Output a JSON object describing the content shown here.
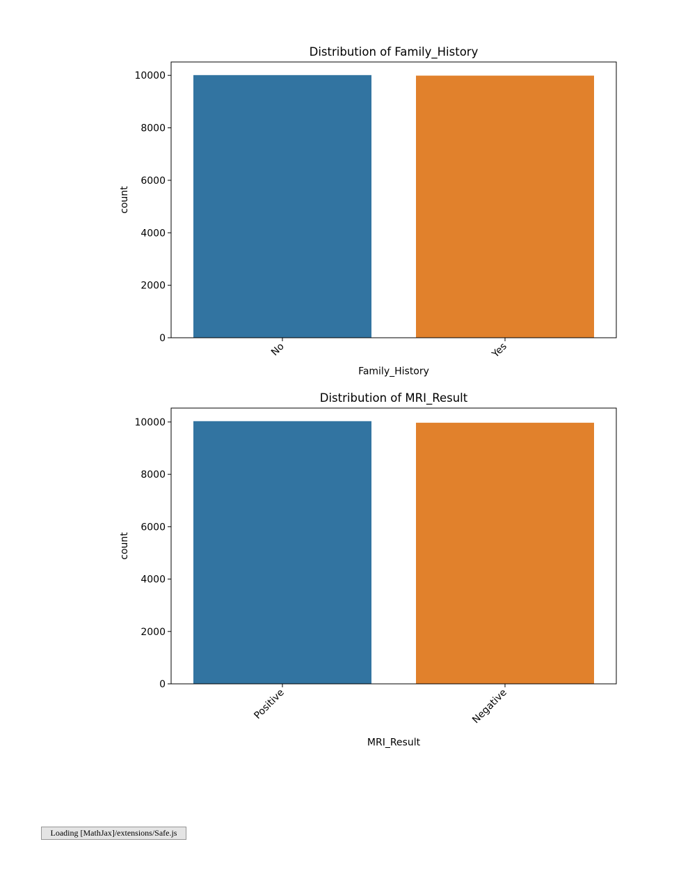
{
  "chart_data": [
    {
      "type": "bar",
      "title": "Distribution of Family_History",
      "xlabel": "Family_History",
      "ylabel": "count",
      "categories": [
        "No",
        "Yes"
      ],
      "values": [
        10010,
        9990
      ],
      "colors": [
        "#3274a1",
        "#e1812c"
      ],
      "ylim": [
        0,
        10510
      ],
      "yticks": [
        0,
        2000,
        4000,
        6000,
        8000,
        10000
      ],
      "grid": false,
      "legend": "none"
    },
    {
      "type": "bar",
      "title": "Distribution of MRI_Result",
      "xlabel": "MRI_Result",
      "ylabel": "count",
      "categories": [
        "Positive",
        "Negative"
      ],
      "values": [
        10030,
        9970
      ],
      "colors": [
        "#3274a1",
        "#e1812c"
      ],
      "ylim": [
        0,
        10530
      ],
      "yticks": [
        0,
        2000,
        4000,
        6000,
        8000,
        10000
      ],
      "grid": false,
      "legend": "none"
    }
  ],
  "status": {
    "loading_text": "Loading [MathJax]/extensions/Safe.js"
  }
}
